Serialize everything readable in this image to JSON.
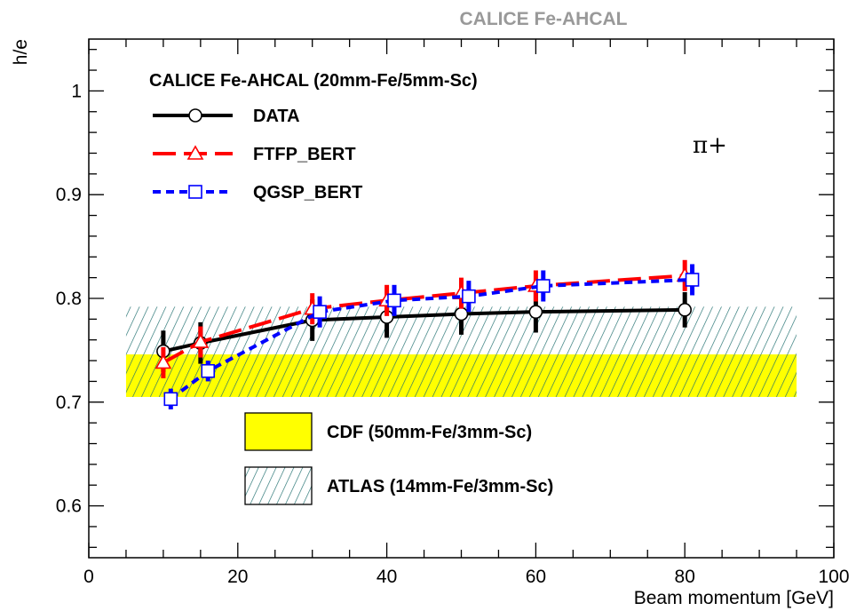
{
  "chart_data": {
    "type": "line",
    "title": "CALICE Fe-AHCAL",
    "xlabel": "Beam momentum [GeV]",
    "ylabel": "h/e",
    "xlim": [
      0,
      100
    ],
    "ylim": [
      0.55,
      1.05
    ],
    "x_ticks": [
      0,
      20,
      40,
      60,
      80,
      100
    ],
    "y_ticks": [
      0.6,
      0.7,
      0.8,
      0.9,
      1
    ],
    "x_tick_labels": [
      "0",
      "20",
      "40",
      "60",
      "80",
      "100"
    ],
    "y_tick_labels": [
      "0.6",
      "0.7",
      "0.8",
      "0.9",
      "1"
    ],
    "legend_title": "CALICE Fe-AHCAL (20mm-Fe/5mm-Sc)",
    "legend_position": "top-left",
    "annotation": "π+",
    "series": [
      {
        "name": "DATA",
        "color": "#000000",
        "line_style": "solid",
        "marker": "circle",
        "x": [
          10,
          15,
          30,
          40,
          50,
          60,
          80
        ],
        "y": [
          0.749,
          0.757,
          0.779,
          0.782,
          0.785,
          0.787,
          0.789
        ],
        "err": [
          0.02,
          0.02,
          0.02,
          0.02,
          0.02,
          0.02,
          0.017
        ]
      },
      {
        "name": "FTFP_BERT",
        "color": "#ff0000",
        "line_style": "dashed",
        "marker": "triangle",
        "x": [
          10,
          15,
          30,
          40,
          50,
          60,
          80
        ],
        "y": [
          0.738,
          0.758,
          0.79,
          0.798,
          0.805,
          0.812,
          0.822
        ],
        "err": [
          0.015,
          0.015,
          0.015,
          0.015,
          0.015,
          0.015,
          0.015
        ]
      },
      {
        "name": "QGSP_BERT",
        "color": "#0000ff",
        "line_style": "dotted",
        "marker": "square",
        "x": [
          11,
          16,
          31,
          41,
          51,
          61,
          81
        ],
        "y": [
          0.703,
          0.73,
          0.787,
          0.798,
          0.802,
          0.812,
          0.818
        ],
        "err": [
          0.01,
          0.01,
          0.015,
          0.015,
          0.015,
          0.015,
          0.015
        ]
      }
    ],
    "bands": [
      {
        "name": "CDF (50mm-Fe/3mm-Sc)",
        "fill": "yellow",
        "color": "#ffff00",
        "x_range": [
          5,
          95
        ],
        "y_range": [
          0.705,
          0.746
        ]
      },
      {
        "name": "ATLAS (14mm-Fe/3mm-Sc)",
        "fill": "hatched",
        "color": "#1e6e6e",
        "x_range": [
          5,
          95
        ],
        "y_range": [
          0.705,
          0.792
        ]
      }
    ]
  }
}
